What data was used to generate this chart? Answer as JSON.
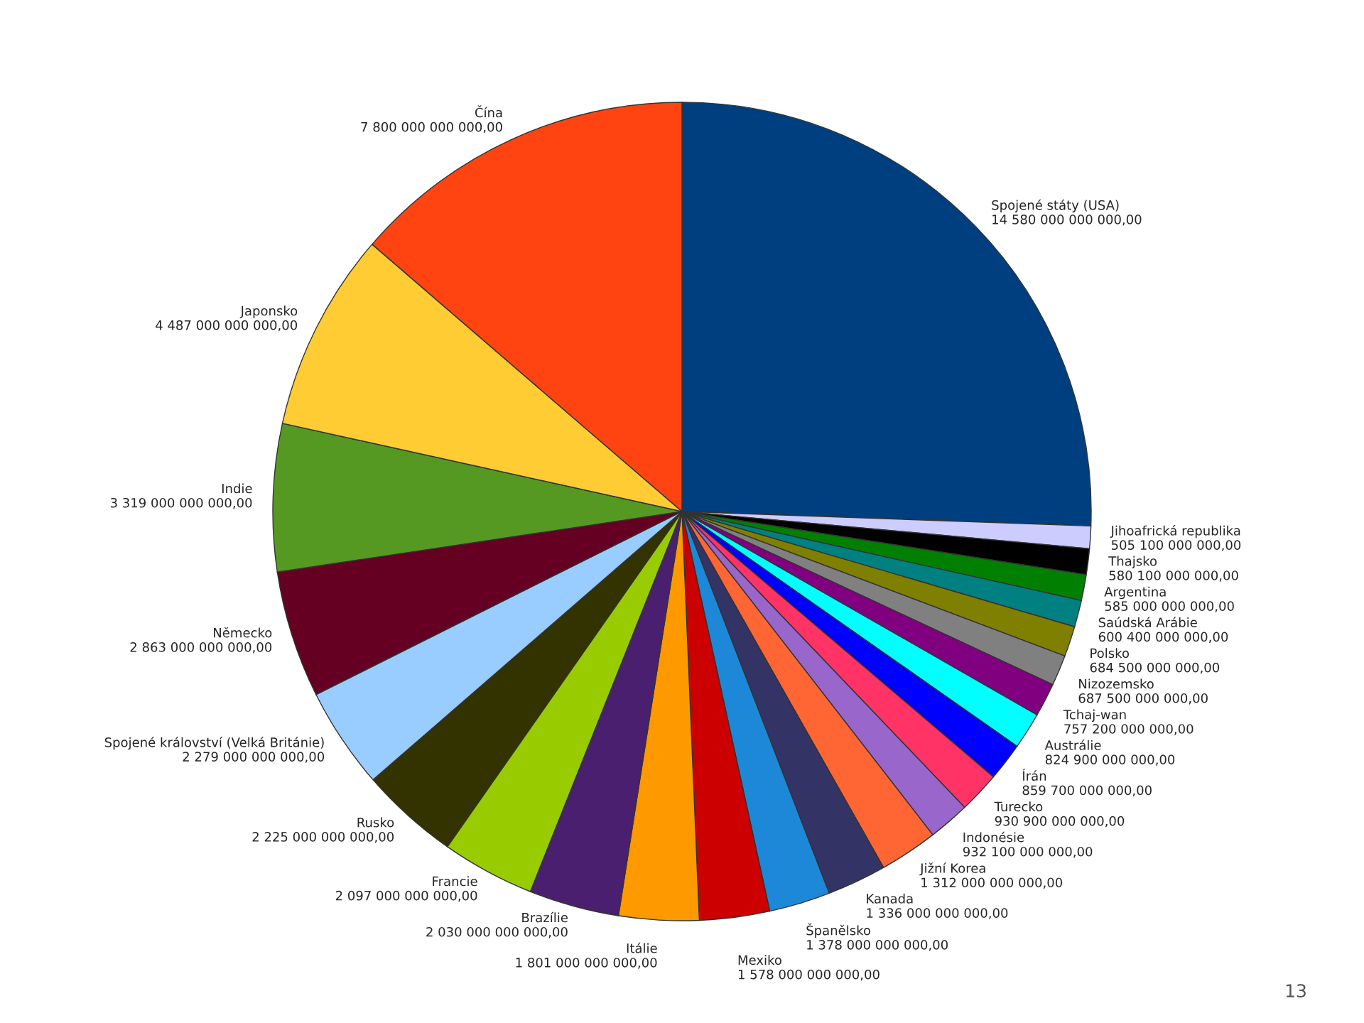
{
  "chart_data": {
    "type": "pie",
    "categories": [
      "Spojené státy (USA)",
      "Jihoafrická republika",
      "Thajsko",
      "Argentina",
      "Saúdská Arábie",
      "Polsko",
      "Nizozemsko",
      "Tchaj-wan",
      "Austrálie",
      "Írán",
      "Turecko",
      "Indonésie",
      "Jižní Korea",
      "Kanada",
      "Španělsko",
      "Mexiko",
      "Itálie",
      "Brazílie",
      "Francie",
      "Rusko",
      "Spojené království (Velká Británie)",
      "Německo",
      "Indie",
      "Japonsko",
      "Čína"
    ],
    "values": [
      14580000000000,
      505100000000,
      580100000000,
      585000000000,
      600400000000,
      684500000000,
      687500000000,
      757200000000,
      824900000000,
      859700000000,
      930900000000,
      932100000000,
      1312000000000,
      1336000000000,
      1378000000000,
      1578000000000,
      1801000000000,
      2030000000000,
      2097000000000,
      2225000000000,
      2279000000000,
      2863000000000,
      3319000000000,
      4487000000000,
      7800000000000
    ],
    "value_labels": [
      "14 580 000 000 000,00",
      "505 100 000 000,00",
      "580 100 000 000,00",
      "585 000 000 000,00",
      "600 400 000 000,00",
      "684 500 000 000,00",
      "687 500 000 000,00",
      "757 200 000 000,00",
      "824 900 000 000,00",
      "859 700 000 000,00",
      "930 900 000 000,00",
      "932 100 000 000,00",
      "1 312 000 000 000,00",
      "1 336 000 000 000,00",
      "1 378 000 000 000,00",
      "1 578 000 000 000,00",
      "1 801 000 000 000,00",
      "2 030 000 000 000,00",
      "2 097 000 000 000,00",
      "2 225 000 000 000,00",
      "2 279 000 000 000,00",
      "2 863 000 000 000,00",
      "3 319 000 000 000,00",
      "4 487 000 000 000,00",
      "7 800 000 000 000,00"
    ],
    "colors": [
      "#003f7f",
      "#ccccff",
      "#000000",
      "#007f00",
      "#008080",
      "#808000",
      "#808080",
      "#800080",
      "#00ffff",
      "#0000ff",
      "#ff3366",
      "#9966cc",
      "#ff6633",
      "#333366",
      "#1e88d8",
      "#cc0000",
      "#ff9900",
      "#4b1f6f",
      "#99cc00",
      "#333300",
      "#99ccff",
      "#660022",
      "#559922",
      "#ffcc33",
      "#ff4411"
    ],
    "annotations": [
      "13"
    ],
    "legend": false
  }
}
